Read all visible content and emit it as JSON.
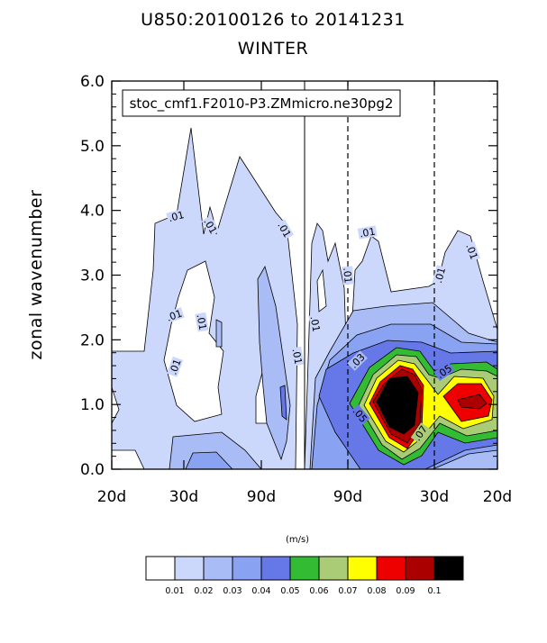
{
  "chart_data": {
    "type": "heatmap",
    "title_line1": "U850:20100126 to 20141231",
    "title_line2": "WINTER",
    "case_label": "stoc_cmf1.F2010-P3.ZMmicro.ne30pg2",
    "ylabel": "zonal wavenumber",
    "ylim": [
      0,
      6
    ],
    "yticks": [
      "0.0",
      "1.0",
      "2.0",
      "3.0",
      "4.0",
      "5.0",
      "6.0"
    ],
    "xticks": [
      "20d",
      "30d",
      "90d",
      "90d",
      "30d",
      "20d"
    ],
    "contour_labels": [
      ".01",
      ".01",
      ".01",
      ".01",
      ".01",
      ".01",
      ".01",
      ".01",
      ".01",
      ".01",
      ".01",
      ".01",
      ".03",
      ".05",
      ".05",
      ".07"
    ],
    "colorbar": {
      "units": "(m/s)",
      "levels": [
        "0.01",
        "0.02",
        "0.03",
        "0.04",
        "0.05",
        "0.06",
        "0.07",
        "0.08",
        "0.09",
        "0.1"
      ],
      "colors": [
        "#ffffff",
        "#ccd8fb",
        "#a9bcf6",
        "#8aa2f2",
        "#6677e8",
        "#33bb33",
        "#aacc77",
        "#ffff00",
        "#ee0000",
        "#aa0000",
        "#000000"
      ]
    }
  }
}
